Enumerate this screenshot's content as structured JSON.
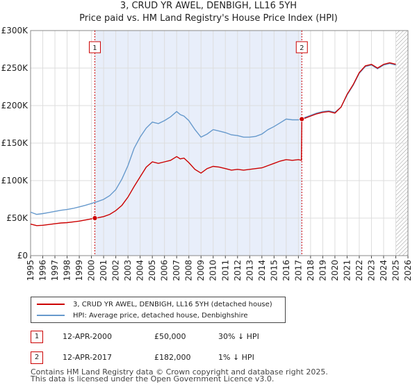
{
  "title": {
    "line1": "3, CRUD YR AWEL, DENBIGH, LL16 5YH",
    "line2": "Price paid vs. HM Land Registry's House Price Index (HPI)"
  },
  "colors": {
    "property": "#cc0000",
    "hpi": "#6699cc",
    "shade": "#e8eefa",
    "grid": "#dddddd"
  },
  "chart_data": {
    "type": "line",
    "title": "Price paid vs. HM Land Registry's House Price Index (HPI)",
    "xlabel": "",
    "ylabel": "",
    "xlim": [
      1995,
      2026
    ],
    "ylim": [
      0,
      300000
    ],
    "y_ticks": [
      0,
      50000,
      100000,
      150000,
      200000,
      250000,
      300000
    ],
    "y_tick_labels": [
      "£0",
      "£50K",
      "£100K",
      "£150K",
      "£200K",
      "£250K",
      "£300K"
    ],
    "x_ticks": [
      1995,
      1996,
      1997,
      1998,
      1999,
      2000,
      2001,
      2002,
      2003,
      2004,
      2005,
      2006,
      2007,
      2008,
      2009,
      2010,
      2011,
      2012,
      2013,
      2014,
      2015,
      2016,
      2017,
      2018,
      2019,
      2020,
      2021,
      2022,
      2023,
      2024,
      2025,
      2026
    ],
    "grid": true,
    "shaded_range": [
      2000.28,
      2017.28
    ],
    "hatched_from": 2025.0,
    "markers": [
      {
        "label": "1",
        "x": 2000.28,
        "y": 50000
      },
      {
        "label": "2",
        "x": 2017.28,
        "y": 182000
      }
    ],
    "series": [
      {
        "name": "3, CRUD YR AWEL, DENBIGH, LL16 5YH (detached house)",
        "x": [
          1995.0,
          1995.5,
          1996.0,
          1996.5,
          1997.0,
          1997.5,
          1998.0,
          1998.5,
          1999.0,
          1999.5,
          2000.0,
          2000.28,
          2000.5,
          2001.0,
          2001.5,
          2002.0,
          2002.5,
          2003.0,
          2003.5,
          2004.0,
          2004.5,
          2005.0,
          2005.5,
          2006.0,
          2006.5,
          2007.0,
          2007.3,
          2007.6,
          2008.0,
          2008.5,
          2009.0,
          2009.5,
          2010.0,
          2010.5,
          2011.0,
          2011.5,
          2012.0,
          2012.5,
          2013.0,
          2013.5,
          2014.0,
          2014.5,
          2015.0,
          2015.5,
          2016.0,
          2016.5,
          2017.0,
          2017.25,
          2017.28,
          2017.5,
          2018.0,
          2018.5,
          2019.0,
          2019.5,
          2020.0,
          2020.5,
          2021.0,
          2021.5,
          2022.0,
          2022.5,
          2023.0,
          2023.5,
          2024.0,
          2024.5,
          2025.0
        ],
        "values": [
          42000,
          40000,
          40500,
          41500,
          42500,
          43500,
          44000,
          45000,
          46000,
          47500,
          49000,
          50000,
          50500,
          52000,
          55000,
          60000,
          67000,
          78000,
          92000,
          105000,
          118000,
          125000,
          123000,
          125000,
          127000,
          132000,
          129000,
          130000,
          124000,
          115000,
          110000,
          116000,
          119000,
          118000,
          116000,
          114000,
          115000,
          114000,
          115000,
          116000,
          117000,
          120000,
          123000,
          126000,
          128000,
          127000,
          128000,
          127000,
          182000,
          183000,
          186000,
          189000,
          191000,
          192000,
          190000,
          198000,
          215000,
          228000,
          244000,
          253000,
          255000,
          250000,
          255000,
          257000,
          255000
        ]
      },
      {
        "name": "HPI: Average price, detached house, Denbighshire",
        "x": [
          1995.0,
          1995.5,
          1996.0,
          1996.5,
          1997.0,
          1997.5,
          1998.0,
          1998.5,
          1999.0,
          1999.5,
          2000.0,
          2000.5,
          2001.0,
          2001.5,
          2002.0,
          2002.5,
          2003.0,
          2003.5,
          2004.0,
          2004.5,
          2005.0,
          2005.5,
          2006.0,
          2006.5,
          2007.0,
          2007.3,
          2007.6,
          2008.0,
          2008.5,
          2009.0,
          2009.5,
          2010.0,
          2010.5,
          2011.0,
          2011.5,
          2012.0,
          2012.5,
          2013.0,
          2013.5,
          2014.0,
          2014.5,
          2015.0,
          2015.5,
          2016.0,
          2016.5,
          2017.0,
          2017.28,
          2017.5,
          2018.0,
          2018.5,
          2019.0,
          2019.5,
          2020.0,
          2020.5,
          2021.0,
          2021.5,
          2022.0,
          2022.5,
          2023.0,
          2023.5,
          2024.0,
          2024.5,
          2025.0
        ],
        "values": [
          58000,
          55000,
          56000,
          57500,
          59000,
          60500,
          61500,
          63000,
          65000,
          67000,
          69500,
          72000,
          75000,
          80000,
          88000,
          102000,
          120000,
          143000,
          158000,
          170000,
          178000,
          176000,
          180000,
          185000,
          192000,
          188000,
          186000,
          180000,
          168000,
          158000,
          162000,
          168000,
          166000,
          164000,
          161000,
          160000,
          158000,
          158000,
          159000,
          162000,
          168000,
          172000,
          177000,
          182000,
          181000,
          181000,
          182000,
          184000,
          187000,
          190000,
          192000,
          193000,
          191000,
          198000,
          214000,
          227000,
          243000,
          252000,
          254000,
          249000,
          254000,
          256000,
          254000
        ]
      }
    ]
  },
  "legend": {
    "property": "3, CRUD YR AWEL, DENBIGH, LL16 5YH (detached house)",
    "hpi": "HPI: Average price, detached house, Denbighshire"
  },
  "sales": [
    {
      "num": "1",
      "date": "12-APR-2000",
      "price": "£50,000",
      "hpi": "30% ↓ HPI"
    },
    {
      "num": "2",
      "date": "12-APR-2017",
      "price": "£182,000",
      "hpi": "1% ↓ HPI"
    }
  ],
  "footer": {
    "line1": "Contains HM Land Registry data © Crown copyright and database right 2025.",
    "line2": "This data is licensed under the Open Government Licence v3.0."
  }
}
